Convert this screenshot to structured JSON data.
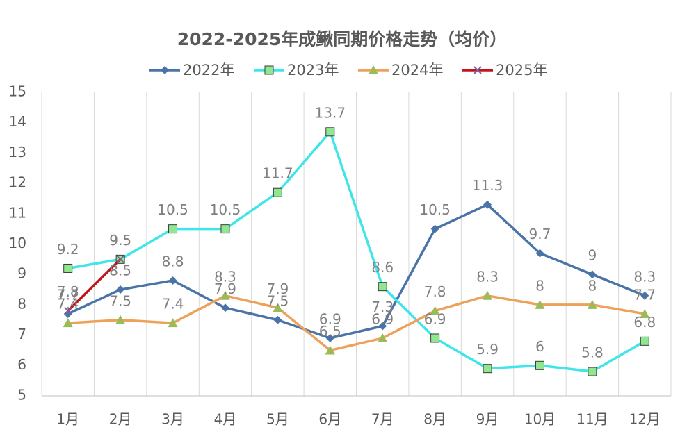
{
  "chart_data": {
    "type": "line",
    "title": "2022-2025年成鳅同期价格走势（均价）",
    "categories": [
      "1月",
      "2月",
      "3月",
      "4月",
      "5月",
      "6月",
      "7月",
      "8月",
      "9月",
      "10月",
      "11月",
      "12月"
    ],
    "series": [
      {
        "name": "2022年",
        "color": "#4a74a8",
        "marker": "diamond",
        "marker_color": "#4a74a8",
        "values": [
          7.7,
          8.5,
          8.8,
          7.9,
          7.5,
          6.9,
          7.3,
          10.5,
          11.3,
          9.7,
          9,
          8.3
        ]
      },
      {
        "name": "2023年",
        "color": "#3ee6ea",
        "marker": "square",
        "marker_color": "#8fe88f",
        "values": [
          9.2,
          9.5,
          10.5,
          10.5,
          11.7,
          13.7,
          8.6,
          6.9,
          5.9,
          6,
          5.8,
          6.8
        ]
      },
      {
        "name": "2024年",
        "color": "#eda25b",
        "marker": "triangle",
        "marker_color": "#9bbb59",
        "values": [
          7.4,
          7.5,
          7.4,
          8.3,
          7.9,
          6.5,
          6.9,
          7.8,
          8.3,
          8,
          8,
          7.7
        ]
      },
      {
        "name": "2025年",
        "color": "#c0151b",
        "marker": "x",
        "marker_color": "#7e5fa0",
        "values": [
          7.8,
          9.5,
          null,
          null,
          null,
          null,
          null,
          null,
          null,
          null,
          null,
          null
        ]
      }
    ],
    "ylim": [
      5,
      15
    ],
    "yticks": [
      5,
      6,
      7,
      8,
      9,
      10,
      11,
      12,
      13,
      14,
      15
    ],
    "grid": true
  }
}
